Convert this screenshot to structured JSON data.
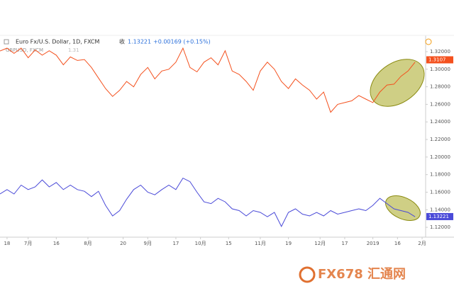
{
  "header": {
    "symbol": "Euro Fx/U.S. Dollar, 1D, FXCM",
    "close_label": "收",
    "close": "1.13221",
    "change": "+0.00169 (+0.15%)",
    "overlay": "GBPUSD, FXCM",
    "overlay_value": "1.31"
  },
  "watermark": "FX678 汇通网",
  "chart_data": {
    "type": "line",
    "x": [
      0,
      2,
      4,
      6,
      8,
      10,
      12,
      14,
      16,
      18,
      20,
      22,
      24,
      26,
      28,
      30,
      32,
      34,
      36,
      38,
      40,
      42,
      44,
      46,
      48,
      50,
      52,
      54,
      56,
      58,
      60,
      62,
      64,
      66,
      68,
      70,
      72,
      74,
      76,
      78,
      80,
      82,
      84,
      86,
      88,
      90,
      92,
      94,
      96,
      98,
      100,
      102,
      104,
      106,
      108,
      110,
      112,
      114,
      116,
      118
    ],
    "series": [
      {
        "name": "GBPUSD",
        "color": "#f4511e",
        "values": [
          1.3208,
          1.324,
          1.318,
          1.324,
          1.313,
          1.322,
          1.316,
          1.321,
          1.316,
          1.305,
          1.314,
          1.31,
          1.311,
          1.302,
          1.29,
          1.278,
          1.269,
          1.276,
          1.286,
          1.28,
          1.294,
          1.302,
          1.289,
          1.298,
          1.3,
          1.308,
          1.324,
          1.302,
          1.297,
          1.308,
          1.313,
          1.305,
          1.321,
          1.298,
          1.294,
          1.286,
          1.276,
          1.298,
          1.308,
          1.3,
          1.286,
          1.278,
          1.289,
          1.282,
          1.276,
          1.266,
          1.274,
          1.251,
          1.26,
          1.262,
          1.264,
          1.27,
          1.266,
          1.262,
          1.274,
          1.282,
          1.283,
          1.292,
          1.298,
          1.308
        ],
        "last_price": {
          "value": 1.3107,
          "label": "1.3107"
        }
      },
      {
        "name": "EURUSD",
        "color": "#4a4ad8",
        "values": [
          1.158,
          1.163,
          1.158,
          1.168,
          1.163,
          1.166,
          1.174,
          1.166,
          1.171,
          1.163,
          1.168,
          1.163,
          1.161,
          1.155,
          1.161,
          1.145,
          1.133,
          1.139,
          1.152,
          1.163,
          1.168,
          1.16,
          1.157,
          1.163,
          1.168,
          1.163,
          1.176,
          1.172,
          1.16,
          1.149,
          1.147,
          1.153,
          1.149,
          1.141,
          1.139,
          1.133,
          1.139,
          1.137,
          1.132,
          1.137,
          1.121,
          1.137,
          1.141,
          1.135,
          1.133,
          1.137,
          1.133,
          1.139,
          1.135,
          1.137,
          1.139,
          1.141,
          1.139,
          1.145,
          1.153,
          1.147,
          1.141,
          1.139,
          1.137,
          1.132
        ],
        "last_price": {
          "value": 1.13221,
          "label": "1.13221"
        }
      }
    ],
    "xlim": [
      0,
      121
    ],
    "xticks": [
      {
        "value": 2,
        "label": "18"
      },
      {
        "value": 8,
        "label": "7月"
      },
      {
        "value": 16,
        "label": "16"
      },
      {
        "value": 25,
        "label": "8月"
      },
      {
        "value": 35,
        "label": "20"
      },
      {
        "value": 42,
        "label": "9月"
      },
      {
        "value": 50,
        "label": "17"
      },
      {
        "value": 57,
        "label": "10月"
      },
      {
        "value": 65,
        "label": "15"
      },
      {
        "value": 74,
        "label": "11月"
      },
      {
        "value": 82,
        "label": "19"
      },
      {
        "value": 91,
        "label": "12月"
      },
      {
        "value": 98,
        "label": "17"
      },
      {
        "value": 106,
        "label": "2019"
      },
      {
        "value": 113,
        "label": "16"
      },
      {
        "value": 120,
        "label": "2月"
      }
    ],
    "ylim": [
      1.1088,
      1.3385
    ],
    "yticks": [
      {
        "value": 1.12,
        "label": "1.12000"
      },
      {
        "value": 1.14,
        "label": "1.14000"
      },
      {
        "value": 1.16,
        "label": "1.16000"
      },
      {
        "value": 1.18,
        "label": "1.18000"
      },
      {
        "value": 1.2,
        "label": "1.20000"
      },
      {
        "value": 1.22,
        "label": "1.22000"
      },
      {
        "value": 1.24,
        "label": "1.24000"
      },
      {
        "value": 1.26,
        "label": "1.26000"
      },
      {
        "value": 1.28,
        "label": "1.28000"
      },
      {
        "value": 1.3,
        "label": "1.30000"
      },
      {
        "value": 1.32,
        "label": "1.32000"
      }
    ]
  }
}
